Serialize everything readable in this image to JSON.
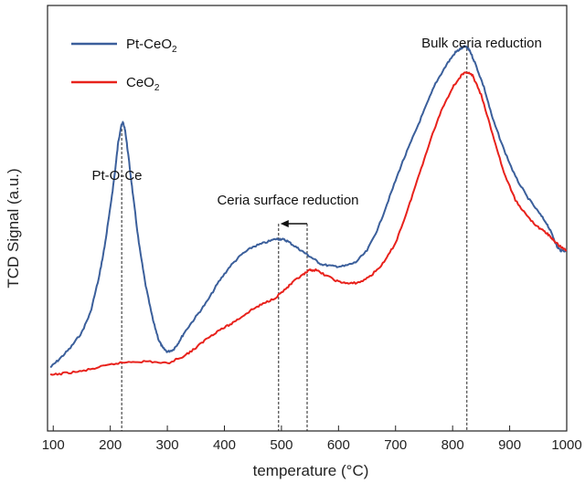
{
  "chart_data": {
    "type": "line",
    "title": "",
    "xlabel": "temperature (°C)",
    "ylabel": "TCD Signal (a.u.)",
    "xlim": [
      90,
      1000
    ],
    "ylim": [
      0,
      1
    ],
    "x_ticks": [
      100,
      200,
      300,
      400,
      500,
      600,
      700,
      800,
      900,
      1000
    ],
    "y_ticks_shown": false,
    "grid": false,
    "legend_position": "top-left",
    "series": [
      {
        "name": "Pt-CeO2",
        "color": "#3b5f9b",
        "x": [
          95,
          110,
          130,
          150,
          165,
          180,
          190,
          200,
          208,
          214,
          219,
          222,
          226,
          232,
          240,
          250,
          262,
          275,
          285,
          292,
          300,
          310,
          318,
          330,
          350,
          370,
          390,
          410,
          430,
          450,
          470,
          490,
          500,
          510,
          525,
          540,
          555,
          570,
          590,
          610,
          630,
          650,
          670,
          690,
          710,
          730,
          750,
          770,
          790,
          805,
          815,
          822,
          830,
          840,
          855,
          870,
          890,
          910,
          930,
          950,
          965,
          975,
          983,
          990,
          1000
        ],
        "y": [
          0.14,
          0.16,
          0.19,
          0.23,
          0.28,
          0.37,
          0.45,
          0.55,
          0.64,
          0.72,
          0.76,
          0.77,
          0.75,
          0.68,
          0.58,
          0.46,
          0.35,
          0.26,
          0.21,
          0.19,
          0.18,
          0.185,
          0.2,
          0.23,
          0.27,
          0.31,
          0.36,
          0.4,
          0.43,
          0.45,
          0.46,
          0.47,
          0.47,
          0.465,
          0.45,
          0.435,
          0.42,
          0.405,
          0.4,
          0.4,
          0.41,
          0.44,
          0.5,
          0.58,
          0.66,
          0.73,
          0.8,
          0.87,
          0.92,
          0.95,
          0.96,
          0.965,
          0.955,
          0.92,
          0.86,
          0.78,
          0.7,
          0.63,
          0.58,
          0.54,
          0.51,
          0.48,
          0.45,
          0.44,
          0.44
        ]
      },
      {
        "name": "CeO2",
        "color": "#e8221c",
        "x": [
          95,
          120,
          150,
          180,
          210,
          240,
          270,
          300,
          330,
          350,
          370,
          390,
          410,
          430,
          450,
          470,
          490,
          510,
          525,
          540,
          550,
          560,
          580,
          600,
          620,
          640,
          660,
          680,
          700,
          720,
          740,
          760,
          780,
          800,
          815,
          825,
          835,
          850,
          870,
          890,
          910,
          930,
          950,
          965,
          975,
          985,
          1000
        ],
        "y": [
          0.12,
          0.125,
          0.13,
          0.14,
          0.15,
          0.155,
          0.155,
          0.15,
          0.17,
          0.19,
          0.215,
          0.235,
          0.25,
          0.27,
          0.29,
          0.305,
          0.32,
          0.345,
          0.365,
          0.38,
          0.39,
          0.39,
          0.375,
          0.36,
          0.355,
          0.36,
          0.38,
          0.41,
          0.46,
          0.54,
          0.63,
          0.72,
          0.8,
          0.86,
          0.89,
          0.9,
          0.89,
          0.84,
          0.74,
          0.64,
          0.57,
          0.53,
          0.5,
          0.485,
          0.47,
          0.455,
          0.44
        ]
      }
    ],
    "annotations": [
      {
        "text": "Pt-O-Ce",
        "x": 220
      },
      {
        "text": "Ceria surface reduction",
        "x": [
          495,
          545
        ]
      },
      {
        "text": "Bulk ceria reduction",
        "x": 825
      }
    ],
    "legend_labels": {
      "pt": {
        "main": "Pt-CeO",
        "sub": "2"
      },
      "ce": {
        "main": "CeO",
        "sub": "2"
      }
    }
  }
}
